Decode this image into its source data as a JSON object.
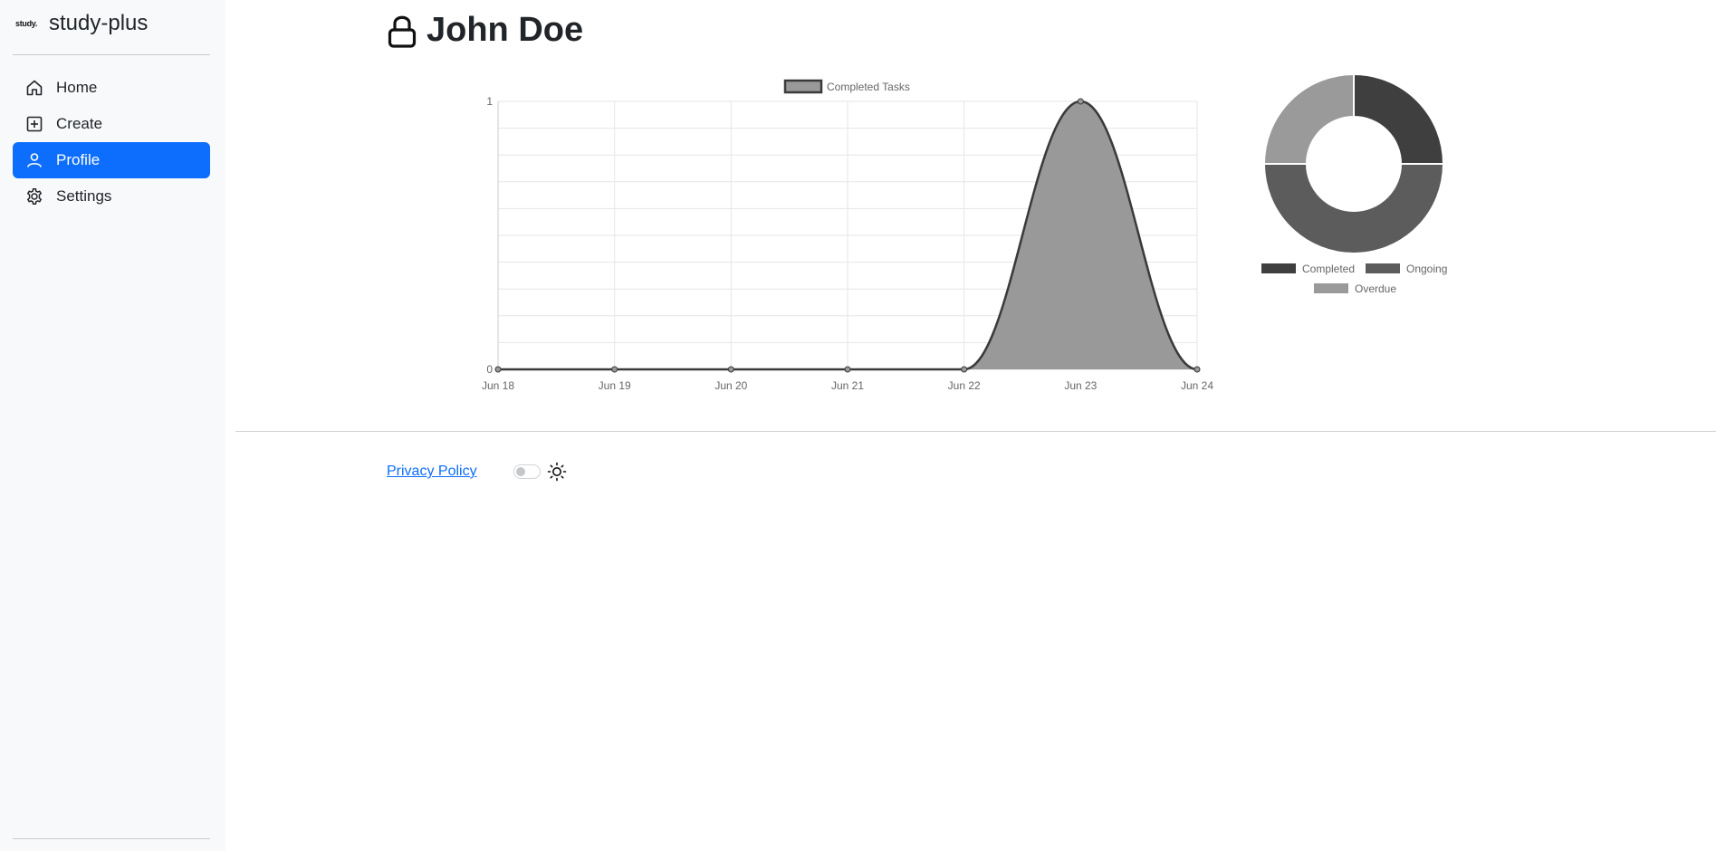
{
  "brand": {
    "logo_text": "study.",
    "name": "study-plus"
  },
  "nav": [
    {
      "label": "Home",
      "icon": "home-icon",
      "active": false
    },
    {
      "label": "Create",
      "icon": "plus-square-icon",
      "active": false
    },
    {
      "label": "Profile",
      "icon": "person-icon",
      "active": true
    },
    {
      "label": "Settings",
      "icon": "gear-icon",
      "active": false
    }
  ],
  "profile": {
    "name": "John Doe",
    "icon": "lock-icon"
  },
  "colors": {
    "accent": "#0d6efd",
    "completed": "#3f3f3f",
    "ongoing": "#5c5c5c",
    "overdue": "#9a9a9a"
  },
  "chart_data": [
    {
      "type": "area",
      "legend": [
        "Completed Tasks"
      ],
      "legend_position": "top",
      "categories": [
        "Jun 18",
        "Jun 19",
        "Jun 20",
        "Jun 21",
        "Jun 22",
        "Jun 23",
        "Jun 24"
      ],
      "series": [
        {
          "name": "Completed Tasks",
          "values": [
            0,
            0,
            0,
            0,
            0,
            1,
            0
          ]
        }
      ],
      "ylim": [
        0,
        1
      ],
      "yticks": [
        "0",
        "1"
      ],
      "grid": true
    },
    {
      "type": "pie",
      "variant": "doughnut",
      "legend_position": "bottom",
      "labels": [
        "Completed",
        "Ongoing",
        "Overdue"
      ],
      "values": [
        1,
        2,
        1
      ],
      "colors": [
        "#3f3f3f",
        "#5c5c5c",
        "#9a9a9a"
      ]
    }
  ],
  "footer": {
    "privacy_label": "Privacy Policy",
    "theme_toggle_on": false,
    "theme_icon": "sun-icon"
  }
}
